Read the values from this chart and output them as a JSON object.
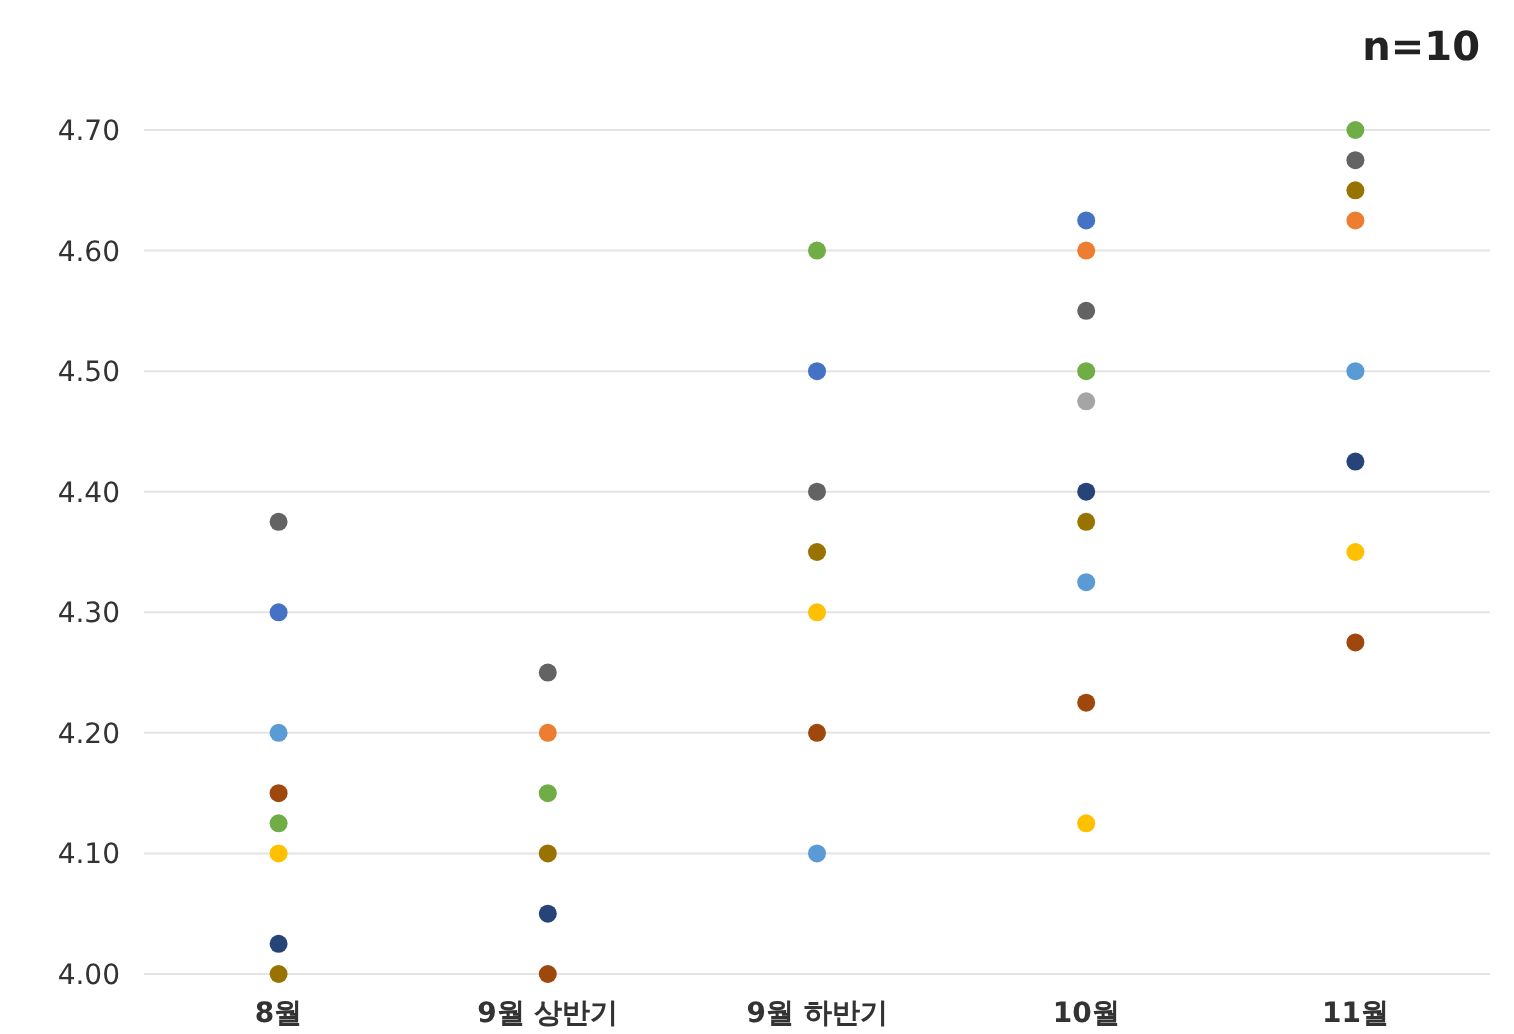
{
  "chart_data": {
    "type": "scatter",
    "categories": [
      "8월",
      "9월 상반기",
      "9월 하반기",
      "10월",
      "11월"
    ],
    "annotations": [
      "n=10"
    ],
    "ylim": [
      4.0,
      4.7
    ],
    "yticks": [
      {
        "value": 4.0,
        "label": "4.00"
      },
      {
        "value": 4.1,
        "label": "4.10"
      },
      {
        "value": 4.2,
        "label": "4.20"
      },
      {
        "value": 4.3,
        "label": "4.30"
      },
      {
        "value": 4.4,
        "label": "4.40"
      },
      {
        "value": 4.5,
        "label": "4.50"
      },
      {
        "value": 4.6,
        "label": "4.60"
      },
      {
        "value": 4.7,
        "label": "4.70"
      }
    ],
    "grid": "y",
    "marker": "circle",
    "series": [
      {
        "color": "#4472c4",
        "values": [
          4.3,
          null,
          4.5,
          4.625,
          null
        ]
      },
      {
        "color": "#ed7d31",
        "values": [
          null,
          4.2,
          null,
          4.6,
          4.625
        ]
      },
      {
        "color": "#a5a5a5",
        "values": [
          null,
          null,
          null,
          4.475,
          null
        ]
      },
      {
        "color": "#ffc000",
        "values": [
          4.1,
          null,
          4.3,
          4.125,
          4.35
        ]
      },
      {
        "color": "#5b9bd5",
        "values": [
          4.2,
          null,
          4.1,
          4.325,
          4.5
        ]
      },
      {
        "color": "#70ad47",
        "values": [
          4.125,
          4.15,
          4.6,
          4.5,
          4.7
        ]
      },
      {
        "color": "#264478",
        "values": [
          4.025,
          4.05,
          null,
          4.4,
          4.425
        ]
      },
      {
        "color": "#9e480e",
        "values": [
          4.15,
          4.0,
          4.2,
          4.225,
          4.275
        ]
      },
      {
        "color": "#636363",
        "values": [
          4.375,
          4.25,
          4.4,
          4.55,
          4.675
        ]
      },
      {
        "color": "#997300",
        "values": [
          4.0,
          4.1,
          4.35,
          4.375,
          4.65
        ]
      }
    ]
  }
}
